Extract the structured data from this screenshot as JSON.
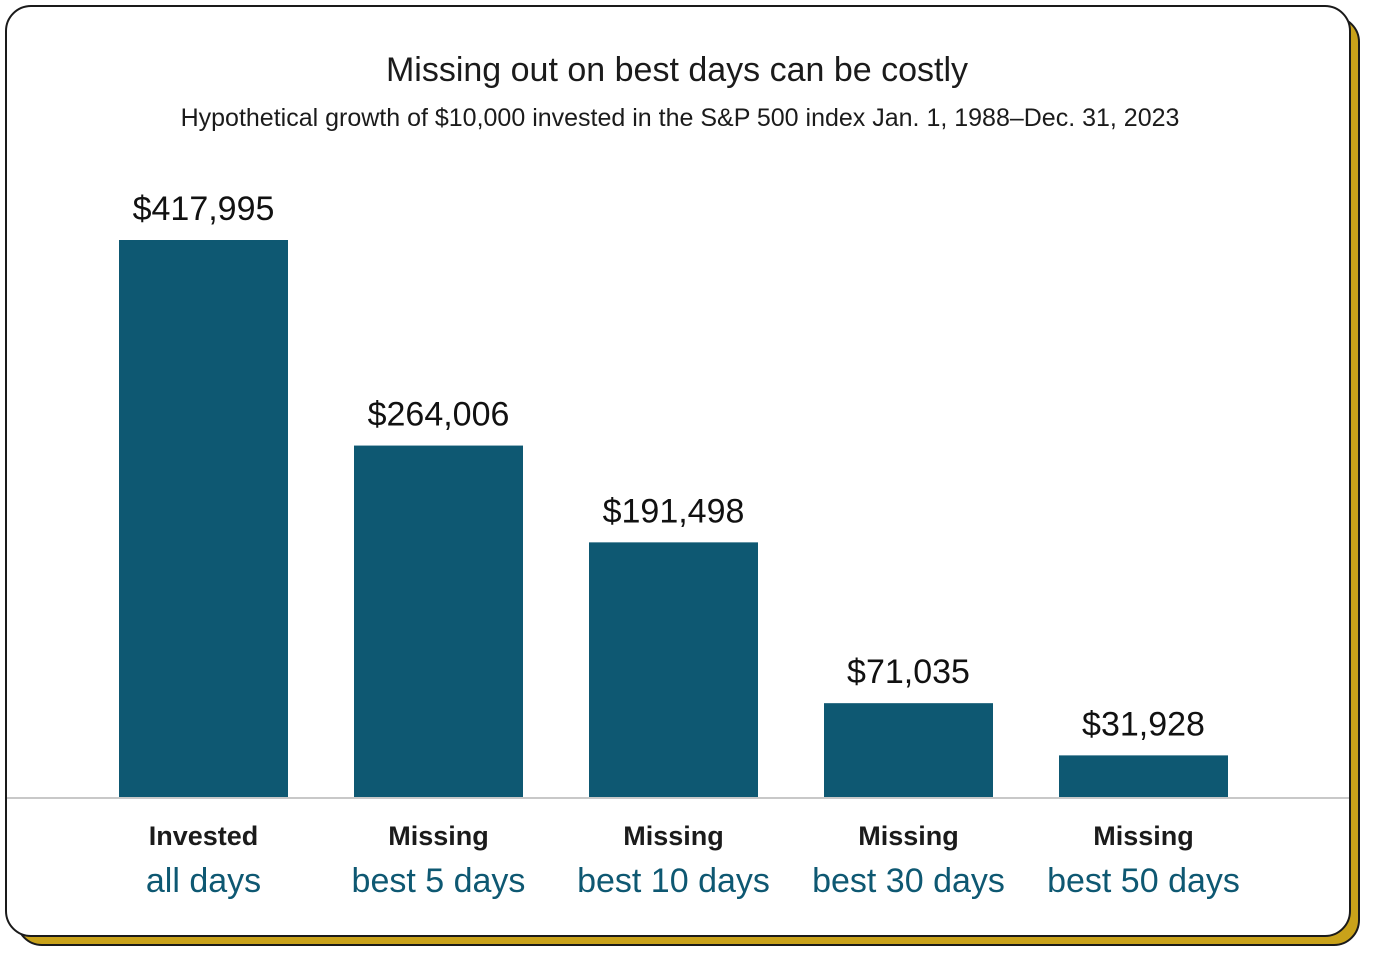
{
  "chart_data": {
    "type": "bar",
    "title": "Missing out on best days can be costly",
    "subtitle": "Hypothetical growth of $10,000 invested in the S&P 500 index Jan. 1, 1988–Dec. 31, 2023",
    "categories": [
      {
        "line1": "Invested",
        "line2": "all days"
      },
      {
        "line1": "Missing",
        "line2": "best 5 days"
      },
      {
        "line1": "Missing",
        "line2": "best 10 days"
      },
      {
        "line1": "Missing",
        "line2": "best 30 days"
      },
      {
        "line1": "Missing",
        "line2": "best 50 days"
      }
    ],
    "values": [
      417995,
      264006,
      191498,
      71035,
      31928
    ],
    "value_labels": [
      "$417,995",
      "$264,006",
      "$191,498",
      "$71,035",
      "$31,928"
    ],
    "ylim": [
      0,
      417995
    ],
    "grid": false,
    "colors": {
      "bar": "#0e5872",
      "category_line2": "#0e5872",
      "frame_shadow": "#c9a21a"
    }
  }
}
